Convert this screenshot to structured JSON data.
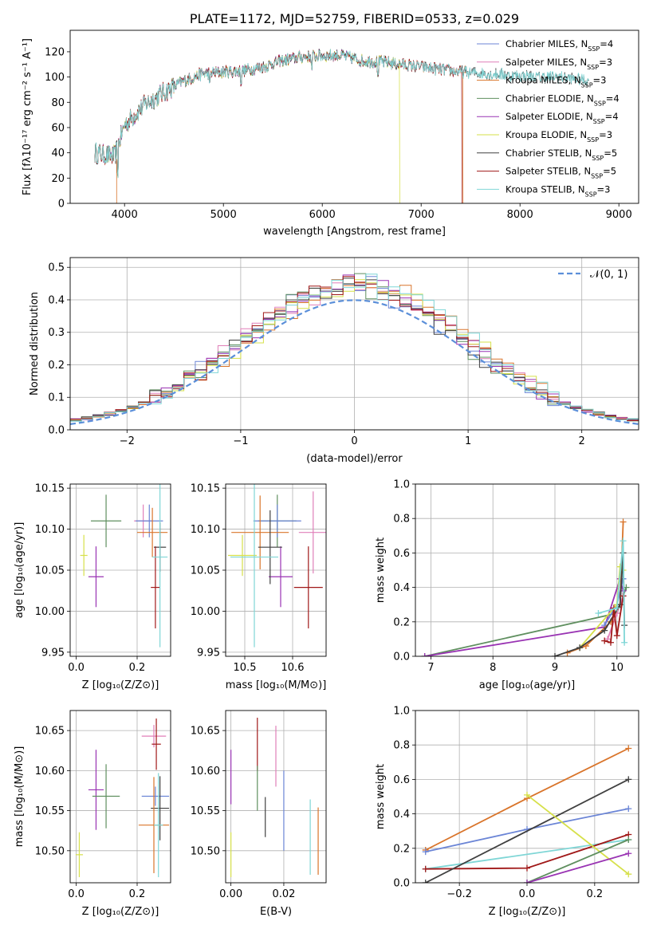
{
  "chart_data": [
    {
      "id": "spectrum",
      "type": "line",
      "title": "PLATE=1172, MJD=52759, FIBERID=0533, z=0.029",
      "xlabel": "wavelength [Angstrom, rest frame]",
      "ylabel": "Flux [fλ10⁻¹⁷ erg cm⁻² s⁻¹ A⁻¹]",
      "xlim": [
        3450,
        9200
      ],
      "ylim": [
        0,
        137
      ],
      "xticks": [
        4000,
        5000,
        6000,
        7000,
        8000,
        9000
      ],
      "yticks": [
        0,
        20,
        40,
        60,
        80,
        100,
        120
      ],
      "grid": false,
      "legend": "top-right",
      "continuum": [
        [
          3700,
          40
        ],
        [
          3900,
          37
        ],
        [
          4000,
          62
        ],
        [
          4200,
          78
        ],
        [
          4400,
          88
        ],
        [
          4600,
          97
        ],
        [
          4800,
          103
        ],
        [
          5000,
          104
        ],
        [
          5200,
          105
        ],
        [
          5400,
          108
        ],
        [
          5600,
          113
        ],
        [
          5800,
          116
        ],
        [
          6000,
          117
        ],
        [
          6200,
          117
        ],
        [
          6400,
          113
        ],
        [
          6600,
          112
        ],
        [
          6800,
          110
        ],
        [
          7000,
          108
        ],
        [
          7200,
          106
        ],
        [
          7400,
          104
        ],
        [
          7600,
          103
        ],
        [
          7800,
          102
        ],
        [
          8000,
          101
        ],
        [
          8200,
          100
        ],
        [
          8400,
          100
        ],
        [
          8600,
          98
        ],
        [
          8700,
          97
        ]
      ],
      "series": [
        {
          "name": "Chabrier MILES, N",
          "sub": "SSP",
          "suffix": "=4",
          "color": "#6b85d6",
          "wmax": 7450
        },
        {
          "name": "Salpeter MILES, N",
          "sub": "SSP",
          "suffix": "=3",
          "color": "#e07fb9",
          "wmax": 7450
        },
        {
          "name": "Kroupa MILES, N",
          "sub": "SSP",
          "suffix": "=3",
          "color": "#d9742a",
          "wmax": 7450,
          "drop": 7420
        },
        {
          "name": "Chabrier ELODIE, N",
          "sub": "SSP",
          "suffix": "=4",
          "color": "#5f8f5f",
          "wmax": 6800
        },
        {
          "name": "Salpeter ELODIE, N",
          "sub": "SSP",
          "suffix": "=4",
          "color": "#9933b3",
          "wmax": 6800
        },
        {
          "name": "Kroupa ELODIE, N",
          "sub": "SSP",
          "suffix": "=3",
          "color": "#d6e04a",
          "wmax": 6800,
          "drop": 6780
        },
        {
          "name": "Chabrier STELIB, N",
          "sub": "SSP",
          "suffix": "=5",
          "color": "#404040",
          "wmax": 8700
        },
        {
          "name": "Salpeter STELIB, N",
          "sub": "SSP",
          "suffix": "=5",
          "color": "#a01818",
          "wmax": 7400,
          "drop": 7410
        },
        {
          "name": "Kroupa STELIB, N",
          "sub": "SSP",
          "suffix": "=3",
          "color": "#7fd6d6",
          "wmax": 8700
        }
      ]
    },
    {
      "id": "residuals",
      "type": "line",
      "xlabel": "(data-model)/error",
      "ylabel": "Normed distribution",
      "xlim": [
        -2.5,
        2.5
      ],
      "ylim": [
        0,
        0.53
      ],
      "xticks": [
        -2,
        -1,
        0,
        1,
        2
      ],
      "yticks": [
        0.0,
        0.1,
        0.2,
        0.3,
        0.4,
        0.5
      ],
      "grid": true,
      "legend": "top-right",
      "legend_label": "𝒩(0, 1)",
      "normal_curve_color": "#5b8fd9",
      "bin_width": 0.1,
      "series_colors": [
        "#6b85d6",
        "#e07fb9",
        "#d9742a",
        "#5f8f5f",
        "#9933b3",
        "#d6e04a",
        "#404040",
        "#a01818",
        "#7fd6d6"
      ]
    },
    {
      "id": "age-vs-Z",
      "type": "scatter",
      "xlabel": "Z [log₁₀(Z/Z⊙)]",
      "ylabel": "age  [log₁₀(age/yr)]",
      "xlim": [
        -0.02,
        0.31
      ],
      "ylim": [
        9.945,
        10.155
      ],
      "xticks": [
        0.0,
        0.2
      ],
      "yticks": [
        9.95,
        10.0,
        10.05,
        10.1,
        10.15
      ],
      "grid": true,
      "points": [
        {
          "color": "#d6e04a",
          "x": 0.025,
          "y": 10.068,
          "xerr": 0.012,
          "yerr": 0.025
        },
        {
          "color": "#9933b3",
          "x": 0.065,
          "y": 10.042,
          "xerr": 0.025,
          "yerr": 0.037
        },
        {
          "color": "#5f8f5f",
          "x": 0.098,
          "y": 10.11,
          "xerr": 0.05,
          "yerr": 0.032
        },
        {
          "color": "#e07fb9",
          "x": 0.22,
          "y": 10.11,
          "xerr": 0.03,
          "yerr": 0.02
        },
        {
          "color": "#6b85d6",
          "x": 0.24,
          "y": 10.11,
          "xerr": 0.045,
          "yerr": 0.02
        },
        {
          "color": "#d9742a",
          "x": 0.25,
          "y": 10.096,
          "xerr": 0.05,
          "yerr": 0.03
        },
        {
          "color": "#404040",
          "x": 0.275,
          "y": 10.078,
          "xerr": 0.02,
          "yerr": 0.03
        },
        {
          "color": "#a01818",
          "x": 0.26,
          "y": 10.029,
          "xerr": 0.015,
          "yerr": 0.05
        },
        {
          "color": "#7fd6d6",
          "x": 0.275,
          "y": 10.066,
          "xerr": 0.025,
          "yerr": 0.11
        }
      ]
    },
    {
      "id": "age-vs-mass",
      "type": "scatter",
      "xlabel": "mass [log₁₀(M/M⊙)]",
      "ylabel": "",
      "xlim": [
        10.46,
        10.67
      ],
      "ylim": [
        9.945,
        10.155
      ],
      "xticks": [
        10.5,
        10.6
      ],
      "yticks": [
        9.95,
        10.0,
        10.05,
        10.1,
        10.15
      ],
      "grid": true,
      "points": [
        {
          "color": "#d6e04a",
          "x": 10.495,
          "y": 10.068,
          "xerr": 0.03,
          "yerr": 0.025
        },
        {
          "color": "#9933b3",
          "x": 10.575,
          "y": 10.042,
          "xerr": 0.025,
          "yerr": 0.037
        },
        {
          "color": "#5f8f5f",
          "x": 10.568,
          "y": 10.11,
          "xerr": 0.04,
          "yerr": 0.032
        },
        {
          "color": "#e07fb9",
          "x": 10.643,
          "y": 10.096,
          "xerr": 0.03,
          "yerr": 0.05
        },
        {
          "color": "#6b85d6",
          "x": 10.568,
          "y": 10.11,
          "xerr": 0.05,
          "yerr": 0.02
        },
        {
          "color": "#d9742a",
          "x": 10.532,
          "y": 10.096,
          "xerr": 0.06,
          "yerr": 0.045
        },
        {
          "color": "#404040",
          "x": 10.553,
          "y": 10.078,
          "xerr": 0.025,
          "yerr": 0.045
        },
        {
          "color": "#a01818",
          "x": 10.633,
          "y": 10.029,
          "xerr": 0.03,
          "yerr": 0.05
        },
        {
          "color": "#7fd6d6",
          "x": 10.52,
          "y": 10.066,
          "xerr": 0.05,
          "yerr": 0.11
        }
      ]
    },
    {
      "id": "massweight-vs-age",
      "type": "line",
      "xlabel": "age  [log₁₀(age/yr)]",
      "ylabel": "mass weight",
      "xlim": [
        6.75,
        10.35
      ],
      "ylim": [
        0,
        1
      ],
      "xticks": [
        7,
        8,
        9,
        10
      ],
      "yticks": [
        0.0,
        0.2,
        0.4,
        0.6,
        0.8,
        1.0
      ],
      "grid": true,
      "series": [
        {
          "color": "#5f8f5f",
          "points": [
            [
              6.9,
              0.0
            ],
            [
              10.0,
              0.25
            ],
            [
              10.1,
              0.35
            ],
            [
              10.15,
              0.4
            ]
          ]
        },
        {
          "color": "#9933b3",
          "points": [
            [
              6.9,
              0.0
            ],
            [
              9.8,
              0.17
            ],
            [
              10.05,
              0.45
            ],
            [
              10.1,
              0.38
            ]
          ]
        },
        {
          "color": "#6b85d6",
          "points": [
            [
              9.8,
              0.18
            ],
            [
              10.0,
              0.3
            ],
            [
              10.1,
              0.45
            ]
          ]
        },
        {
          "color": "#e07fb9",
          "points": [
            [
              9.85,
              0.1
            ],
            [
              10.0,
              0.25
            ],
            [
              10.1,
              0.35
            ]
          ]
        },
        {
          "color": "#d9742a",
          "points": [
            [
              9.2,
              0.02
            ],
            [
              9.5,
              0.06
            ],
            [
              9.9,
              0.2
            ],
            [
              10.05,
              0.3
            ],
            [
              10.1,
              0.78
            ]
          ]
        },
        {
          "color": "#d6e04a",
          "points": [
            [
              9.4,
              0.05
            ],
            [
              10.0,
              0.3
            ],
            [
              10.05,
              0.52
            ],
            [
              10.1,
              0.5
            ]
          ]
        },
        {
          "color": "#404040",
          "points": [
            [
              9.0,
              0.0
            ],
            [
              9.4,
              0.05
            ],
            [
              9.8,
              0.15
            ],
            [
              10.05,
              0.3
            ],
            [
              10.1,
              0.6
            ],
            [
              10.12,
              0.18
            ]
          ]
        },
        {
          "color": "#a01818",
          "points": [
            [
              9.8,
              0.09
            ],
            [
              9.9,
              0.08
            ],
            [
              9.95,
              0.28
            ],
            [
              10.0,
              0.12
            ],
            [
              10.1,
              0.35
            ]
          ]
        },
        {
          "color": "#7fd6d6",
          "points": [
            [
              9.7,
              0.25
            ],
            [
              10.0,
              0.28
            ],
            [
              10.1,
              0.67
            ],
            [
              10.12,
              0.08
            ]
          ]
        }
      ]
    },
    {
      "id": "mass-vs-Z",
      "type": "scatter",
      "xlabel": "Z [log₁₀(Z/Z⊙)]",
      "ylabel": "mass [log₁₀(M/M⊙)]",
      "xlim": [
        -0.02,
        0.31
      ],
      "ylim": [
        10.46,
        10.675
      ],
      "xticks": [
        0.0,
        0.2
      ],
      "yticks": [
        10.5,
        10.55,
        10.6,
        10.65
      ],
      "grid": true,
      "points": [
        {
          "color": "#d6e04a",
          "x": 0.01,
          "y": 10.495,
          "xerr": 0.012,
          "yerr": 0.028
        },
        {
          "color": "#9933b3",
          "x": 0.065,
          "y": 10.576,
          "xerr": 0.025,
          "yerr": 0.05
        },
        {
          "color": "#5f8f5f",
          "x": 0.098,
          "y": 10.568,
          "xerr": 0.045,
          "yerr": 0.04
        },
        {
          "color": "#e07fb9",
          "x": 0.255,
          "y": 10.643,
          "xerr": 0.04,
          "yerr": 0.014
        },
        {
          "color": "#a01818",
          "x": 0.263,
          "y": 10.633,
          "xerr": 0.015,
          "yerr": 0.032
        },
        {
          "color": "#6b85d6",
          "x": 0.26,
          "y": 10.568,
          "xerr": 0.045,
          "yerr": 0.012
        },
        {
          "color": "#404040",
          "x": 0.275,
          "y": 10.553,
          "xerr": 0.03,
          "yerr": 0.04
        },
        {
          "color": "#d9742a",
          "x": 0.255,
          "y": 10.532,
          "xerr": 0.05,
          "yerr": 0.06
        },
        {
          "color": "#7fd6d6",
          "x": 0.27,
          "y": 10.532,
          "xerr": 0.015,
          "yerr": 0.065
        }
      ]
    },
    {
      "id": "mass-vs-EBV",
      "type": "scatter",
      "xlabel": "E(B-V)",
      "ylabel": "",
      "xlim": [
        -0.002,
        0.036
      ],
      "ylim": [
        10.46,
        10.675
      ],
      "xticks": [
        0.0,
        0.02
      ],
      "yticks": [
        10.5,
        10.55,
        10.6,
        10.65
      ],
      "grid": true,
      "points": [
        {
          "color": "#d6e04a",
          "x": 0.0,
          "y": 10.495,
          "xerr": 0.0,
          "yerr": 0.028
        },
        {
          "color": "#9933b3",
          "x": 0.0,
          "y": 10.592,
          "xerr": 0.0,
          "yerr": 0.034
        },
        {
          "color": "#a01818",
          "x": 0.01,
          "y": 10.633,
          "xerr": 0.0,
          "yerr": 0.033
        },
        {
          "color": "#5f8f5f",
          "x": 0.01,
          "y": 10.578,
          "xerr": 0.0,
          "yerr": 0.028
        },
        {
          "color": "#404040",
          "x": 0.013,
          "y": 10.542,
          "xerr": 0.0,
          "yerr": 0.025
        },
        {
          "color": "#e07fb9",
          "x": 0.017,
          "y": 10.618,
          "xerr": 0.0,
          "yerr": 0.038
        },
        {
          "color": "#6b85d6",
          "x": 0.02,
          "y": 10.55,
          "xerr": 0.0,
          "yerr": 0.05
        },
        {
          "color": "#7fd6d6",
          "x": 0.03,
          "y": 10.517,
          "xerr": 0.0,
          "yerr": 0.047
        },
        {
          "color": "#d9742a",
          "x": 0.033,
          "y": 10.512,
          "xerr": 0.0,
          "yerr": 0.042
        }
      ]
    },
    {
      "id": "massweight-vs-Z",
      "type": "line",
      "xlabel": "Z [log₁₀(Z/Z⊙)]",
      "ylabel": "mass weight",
      "xlim": [
        -0.33,
        0.33
      ],
      "ylim": [
        0,
        1
      ],
      "xticks": [
        -0.2,
        0.0,
        0.2
      ],
      "yticks": [
        0.0,
        0.2,
        0.4,
        0.6,
        0.8,
        1.0
      ],
      "grid": true,
      "series": [
        {
          "color": "#d9742a",
          "points": [
            [
              -0.3,
              0.19
            ],
            [
              0.0,
              0.49
            ],
            [
              0.3,
              0.78
            ]
          ]
        },
        {
          "color": "#6b85d6",
          "points": [
            [
              -0.3,
              0.18
            ],
            [
              0.0,
              0.31
            ],
            [
              0.3,
              0.43
            ]
          ]
        },
        {
          "color": "#7fd6d6",
          "points": [
            [
              -0.3,
              0.08
            ],
            [
              0.3,
              0.25
            ]
          ]
        },
        {
          "color": "#a01818",
          "points": [
            [
              -0.3,
              0.08
            ],
            [
              0.0,
              0.085
            ],
            [
              0.3,
              0.28
            ]
          ]
        },
        {
          "color": "#404040",
          "points": [
            [
              -0.3,
              0.0
            ],
            [
              0.3,
              0.6
            ]
          ]
        },
        {
          "color": "#d6e04a",
          "points": [
            [
              0.0,
              0.51
            ],
            [
              0.3,
              0.05
            ]
          ]
        },
        {
          "color": "#5f8f5f",
          "points": [
            [
              0.0,
              0.0
            ],
            [
              0.3,
              0.25
            ]
          ]
        },
        {
          "color": "#9933b3",
          "points": [
            [
              0.0,
              0.0
            ],
            [
              0.3,
              0.17
            ]
          ]
        }
      ]
    }
  ]
}
